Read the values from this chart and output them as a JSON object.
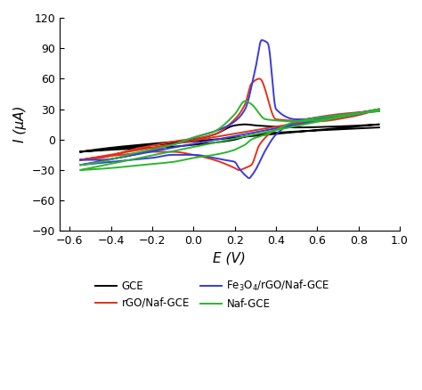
{
  "title": "",
  "xlabel": "E (V)",
  "ylabel": "I (μA)",
  "xlim": [
    -0.65,
    1.0
  ],
  "ylim": [
    -90,
    120
  ],
  "xticks": [
    -0.6,
    -0.4,
    -0.2,
    0.0,
    0.2,
    0.4,
    0.6,
    0.8,
    1.0
  ],
  "yticks": [
    -90,
    -60,
    -30,
    0,
    30,
    60,
    90,
    120
  ],
  "colors": {
    "GCE": "#000000",
    "rGO": "#e0341a",
    "Fe3O4": "#3a3adb",
    "Naf": "#2db52d"
  }
}
